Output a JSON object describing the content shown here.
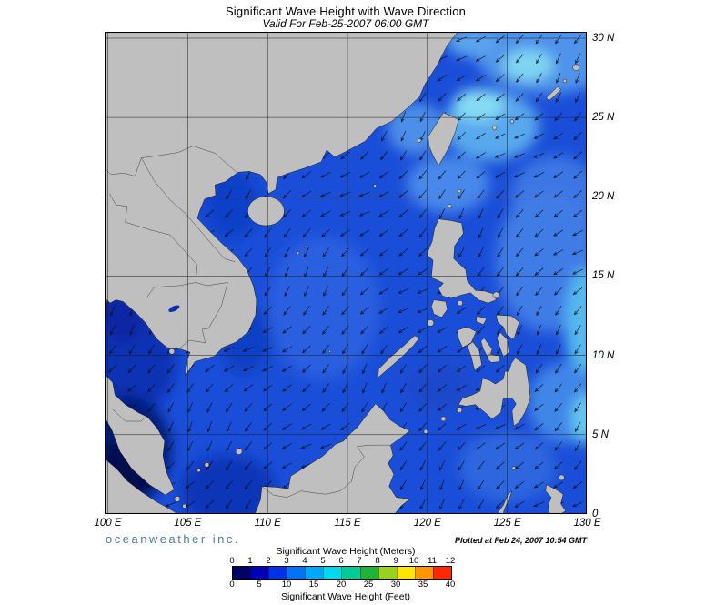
{
  "header": {
    "title": "Significant Wave Height with Wave Direction",
    "subtitle": "Valid For Feb-25-2007 06:00 GMT"
  },
  "map": {
    "lon_labels": [
      "100 E",
      "105 E",
      "110 E",
      "115 E",
      "120 E",
      "125 E",
      "130 E"
    ],
    "lat_labels": [
      "0",
      "5 N",
      "10 N",
      "15 N",
      "20 N",
      "25 N",
      "30 N"
    ],
    "land_color": "#bfbfbf",
    "ocean_base_color": "#1b4ed8",
    "grid_color": "#1a1a1a"
  },
  "arrows": {
    "color": "#02101e",
    "base_bearing": "toward southwest"
  },
  "footer": {
    "branding": "oceanweather inc.",
    "branding_color": "#4e7d96",
    "plotted": "Plotted at Feb 24, 2007 10:54 GMT"
  },
  "legend": {
    "meters_label": "Significant Wave Height (Meters)",
    "feet_label": "Significant Wave Height (Feet)",
    "meters_ticks": [
      "0",
      "1",
      "2",
      "3",
      "4",
      "5",
      "6",
      "7",
      "8",
      "9",
      "10",
      "11",
      "12"
    ],
    "feet_ticks": [
      "0",
      "5",
      "10",
      "15",
      "20",
      "25",
      "30",
      "35",
      "40"
    ],
    "colors": [
      "#000066",
      "#0000b4",
      "#0032e6",
      "#0073f5",
      "#00a8fa",
      "#00d8f0",
      "#00cd96",
      "#1eb43c",
      "#96d21e",
      "#ffe600",
      "#ff9600",
      "#ff2800"
    ]
  }
}
